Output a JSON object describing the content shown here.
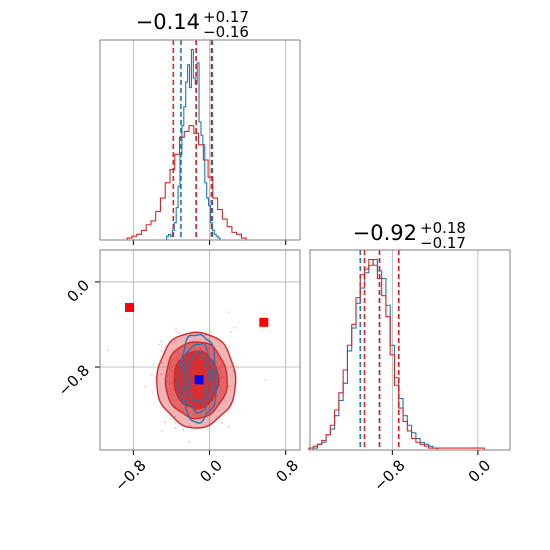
{
  "colors": {
    "blue": "#1f77b4",
    "red": "#d62728",
    "grid": "#b0b0b0",
    "spine": "#808080",
    "marker_red": "#ff0000",
    "marker_blue": "#0000ff"
  },
  "titles": {
    "param1": {
      "main": "−0.14",
      "upper": "+0.17",
      "lower": "−0.16"
    },
    "param2": {
      "main": "−0.92",
      "upper": "+0.18",
      "lower": "−0.17"
    }
  },
  "chart_data": [
    {
      "type": "histogram",
      "panel": "marginal-param1",
      "xlim": [
        -1.15,
        0.95
      ],
      "ticks": [
        -0.8,
        0.0,
        0.8
      ],
      "tick_labels": [
        "−0.8",
        "0.0",
        "0.8"
      ],
      "grid": true,
      "series": [
        {
          "color": "#1f77b4",
          "bins": [
            [
              -0.44,
              0.02
            ],
            [
              -0.42,
              0.03
            ],
            [
              -0.4,
              0.02
            ],
            [
              -0.38,
              0.05
            ],
            [
              -0.36,
              0.09
            ],
            [
              -0.34,
              0.17
            ],
            [
              -0.32,
              0.28
            ],
            [
              -0.3,
              0.45
            ],
            [
              -0.28,
              0.6
            ],
            [
              -0.26,
              0.7
            ],
            [
              -0.24,
              0.83
            ],
            [
              -0.22,
              0.92
            ],
            [
              -0.2,
              0.8
            ],
            [
              -0.18,
              1.0
            ],
            [
              -0.16,
              0.85
            ],
            [
              -0.14,
              0.82
            ],
            [
              -0.12,
              0.93
            ],
            [
              -0.1,
              0.62
            ],
            [
              -0.08,
              0.55
            ],
            [
              -0.06,
              0.5
            ],
            [
              -0.04,
              0.3
            ],
            [
              -0.02,
              0.22
            ],
            [
              0.0,
              0.18
            ],
            [
              0.02,
              0.09
            ],
            [
              0.04,
              0.05
            ],
            [
              0.06,
              0.03
            ],
            [
              0.08,
              0.02
            ],
            [
              0.1,
              0.01
            ]
          ],
          "quantiles": [
            -0.3,
            -0.14,
            0.03
          ]
        },
        {
          "color": "#d62728",
          "bins": [
            [
              -0.84,
              0.01
            ],
            [
              -0.79,
              0.02
            ],
            [
              -0.74,
              0.03
            ],
            [
              -0.69,
              0.05
            ],
            [
              -0.64,
              0.08
            ],
            [
              -0.59,
              0.1
            ],
            [
              -0.54,
              0.15
            ],
            [
              -0.49,
              0.22
            ],
            [
              -0.44,
              0.3
            ],
            [
              -0.39,
              0.37
            ],
            [
              -0.34,
              0.45
            ],
            [
              -0.29,
              0.54
            ],
            [
              -0.24,
              0.57
            ],
            [
              -0.19,
              0.6
            ],
            [
              -0.14,
              0.56
            ],
            [
              -0.09,
              0.5
            ],
            [
              -0.04,
              0.42
            ],
            [
              0.01,
              0.33
            ],
            [
              0.06,
              0.22
            ],
            [
              0.11,
              0.16
            ],
            [
              0.16,
              0.11
            ],
            [
              0.21,
              0.07
            ],
            [
              0.26,
              0.04
            ],
            [
              0.31,
              0.03
            ],
            [
              0.36,
              0.01
            ]
          ],
          "quantiles": [
            -0.38,
            -0.14,
            0.02
          ]
        }
      ]
    },
    {
      "type": "contour",
      "panel": "joint-param1-param2",
      "xlim": [
        -1.15,
        0.95
      ],
      "ylim": [
        -1.58,
        0.3
      ],
      "x_ticks": [
        -0.8,
        0.0,
        0.8
      ],
      "y_ticks": [
        0.0,
        -0.8
      ],
      "y_tick_labels": [
        "0.0",
        "−0.8"
      ],
      "grid": true,
      "series": [
        {
          "color": "#d62728",
          "filled": true,
          "center": [
            -0.14,
            -0.92
          ],
          "levels_sigma": [
            [
              0.26,
              0.3
            ],
            [
              0.36,
              0.4
            ],
            [
              0.46,
              0.5
            ]
          ]
        },
        {
          "color": "#1f77b4",
          "filled": false,
          "center": [
            -0.12,
            -0.9
          ],
          "levels_sigma": [
            [
              0.12,
              0.26
            ],
            [
              0.17,
              0.36
            ],
            [
              0.22,
              0.46
            ]
          ]
        }
      ],
      "markers": [
        {
          "x": -0.84,
          "y": -0.24,
          "color": "#ff0000",
          "shape": "square"
        },
        {
          "x": 0.57,
          "y": -0.38,
          "color": "#ff0000",
          "shape": "square"
        },
        {
          "x": -0.11,
          "y": -0.92,
          "color": "#0000ff",
          "shape": "square"
        }
      ]
    },
    {
      "type": "histogram",
      "panel": "marginal-param2",
      "xlim": [
        -1.57,
        0.3
      ],
      "ticks": [
        -0.8,
        0.0
      ],
      "tick_labels": [
        "−0.8",
        "0.0"
      ],
      "grid": true,
      "series": [
        {
          "color": "#1f77b4",
          "bins": [
            [
              -1.52,
              0.01
            ],
            [
              -1.48,
              0.03
            ],
            [
              -1.44,
              0.04
            ],
            [
              -1.4,
              0.08
            ],
            [
              -1.36,
              0.11
            ],
            [
              -1.32,
              0.18
            ],
            [
              -1.28,
              0.26
            ],
            [
              -1.24,
              0.35
            ],
            [
              -1.2,
              0.52
            ],
            [
              -1.16,
              0.64
            ],
            [
              -1.12,
              0.77
            ],
            [
              -1.08,
              0.85
            ],
            [
              -1.04,
              0.93
            ],
            [
              -1.0,
              0.97
            ],
            [
              -0.96,
              1.0
            ],
            [
              -0.92,
              0.94
            ],
            [
              -0.88,
              0.9
            ],
            [
              -0.84,
              0.76
            ],
            [
              -0.8,
              0.55
            ],
            [
              -0.76,
              0.38
            ],
            [
              -0.72,
              0.27
            ],
            [
              -0.68,
              0.18
            ],
            [
              -0.64,
              0.13
            ],
            [
              -0.6,
              0.09
            ],
            [
              -0.56,
              0.06
            ],
            [
              -0.52,
              0.04
            ],
            [
              -0.48,
              0.03
            ],
            [
              -0.44,
              0.02
            ],
            [
              -0.4,
              0.01
            ]
          ],
          "quantiles": [
            -1.1,
            -0.92,
            -0.74
          ]
        },
        {
          "color": "#d62728",
          "bins": [
            [
              -1.56,
              0.01
            ],
            [
              -1.52,
              0.02
            ],
            [
              -1.48,
              0.03
            ],
            [
              -1.44,
              0.05
            ],
            [
              -1.4,
              0.08
            ],
            [
              -1.36,
              0.13
            ],
            [
              -1.32,
              0.21
            ],
            [
              -1.28,
              0.3
            ],
            [
              -1.24,
              0.42
            ],
            [
              -1.2,
              0.55
            ],
            [
              -1.16,
              0.66
            ],
            [
              -1.12,
              0.8
            ],
            [
              -1.08,
              0.92
            ],
            [
              -1.04,
              0.95
            ],
            [
              -1.0,
              1.0
            ],
            [
              -0.96,
              0.97
            ],
            [
              -0.92,
              0.9
            ],
            [
              -0.88,
              0.81
            ],
            [
              -0.84,
              0.7
            ],
            [
              -0.8,
              0.5
            ],
            [
              -0.76,
              0.34
            ],
            [
              -0.72,
              0.22
            ],
            [
              -0.68,
              0.15
            ],
            [
              -0.64,
              0.1
            ],
            [
              -0.6,
              0.06
            ],
            [
              -0.56,
              0.04
            ],
            [
              -0.52,
              0.03
            ],
            [
              -0.48,
              0.02
            ],
            [
              -0.44,
              0.01
            ],
            [
              -0.4,
              0.01
            ],
            [
              0.0,
              0.01
            ],
            [
              0.04,
              0.01
            ]
          ],
          "quantiles": [
            -1.06,
            -0.92,
            -0.74
          ]
        }
      ]
    }
  ]
}
